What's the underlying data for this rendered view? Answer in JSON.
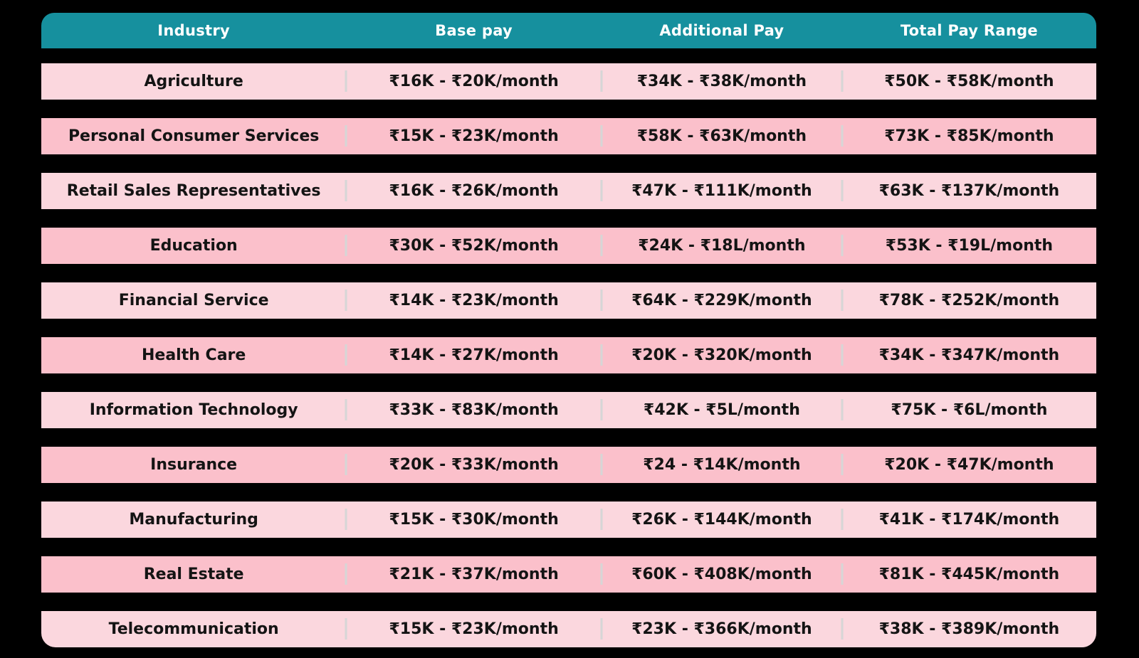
{
  "chart_data": {
    "type": "table",
    "columns": [
      {
        "key": "industry",
        "label": "Industry"
      },
      {
        "key": "base_pay",
        "label": "Base pay"
      },
      {
        "key": "additional_pay",
        "label": "Additional Pay"
      },
      {
        "key": "total_pay_range",
        "label": "Total Pay Range"
      }
    ],
    "rows": [
      {
        "industry": "Agriculture",
        "base_pay": "₹16K - ₹20K/month",
        "additional_pay": "₹34K - ₹38K/month",
        "total_pay_range": "₹50K - ₹58K/month"
      },
      {
        "industry": "Personal Consumer Services",
        "base_pay": "₹15K - ₹23K/month",
        "additional_pay": "₹58K - ₹63K/month",
        "total_pay_range": "₹73K - ₹85K/month"
      },
      {
        "industry": "Retail Sales Representatives",
        "base_pay": "₹16K - ₹26K/month",
        "additional_pay": "₹47K - ₹111K/month",
        "total_pay_range": "₹63K - ₹137K/month"
      },
      {
        "industry": "Education",
        "base_pay": "₹30K - ₹52K/month",
        "additional_pay": "₹24K - ₹18L/month",
        "total_pay_range": "₹53K - ₹19L/month"
      },
      {
        "industry": "Financial Service",
        "base_pay": "₹14K - ₹23K/month",
        "additional_pay": "₹64K - ₹229K/month",
        "total_pay_range": "₹78K - ₹252K/month"
      },
      {
        "industry": "Health Care",
        "base_pay": "₹14K - ₹27K/month",
        "additional_pay": "₹20K - ₹320K/month",
        "total_pay_range": "₹34K - ₹347K/month"
      },
      {
        "industry": "Information Technology",
        "base_pay": "₹33K - ₹83K/month",
        "additional_pay": "₹42K - ₹5L/month",
        "total_pay_range": "₹75K - ₹6L/month"
      },
      {
        "industry": "Insurance",
        "base_pay": "₹20K - ₹33K/month",
        "additional_pay": "₹24 - ₹14K/month",
        "total_pay_range": "₹20K - ₹47K/month"
      },
      {
        "industry": "Manufacturing",
        "base_pay": "₹15K - ₹30K/month",
        "additional_pay": "₹26K - ₹144K/month",
        "total_pay_range": "₹41K - ₹174K/month"
      },
      {
        "industry": "Real Estate",
        "base_pay": "₹21K - ₹37K/month",
        "additional_pay": "₹60K - ₹408K/month",
        "total_pay_range": "₹81K - ₹445K/month"
      },
      {
        "industry": "Telecommunication",
        "base_pay": "₹15K - ₹23K/month",
        "additional_pay": "₹23K - ₹366K/month",
        "total_pay_range": "₹38K - ₹389K/month"
      }
    ],
    "layout": {
      "grid": "off",
      "legend": "none"
    }
  },
  "colors": {
    "page_bg": "#000000",
    "header_bg": "#16909e",
    "header_text": "#ffffff",
    "row_light": "#fbd7de",
    "row_dark": "#fbc0cb",
    "cell_text": "#141414",
    "divider": "#d6d6d6"
  }
}
